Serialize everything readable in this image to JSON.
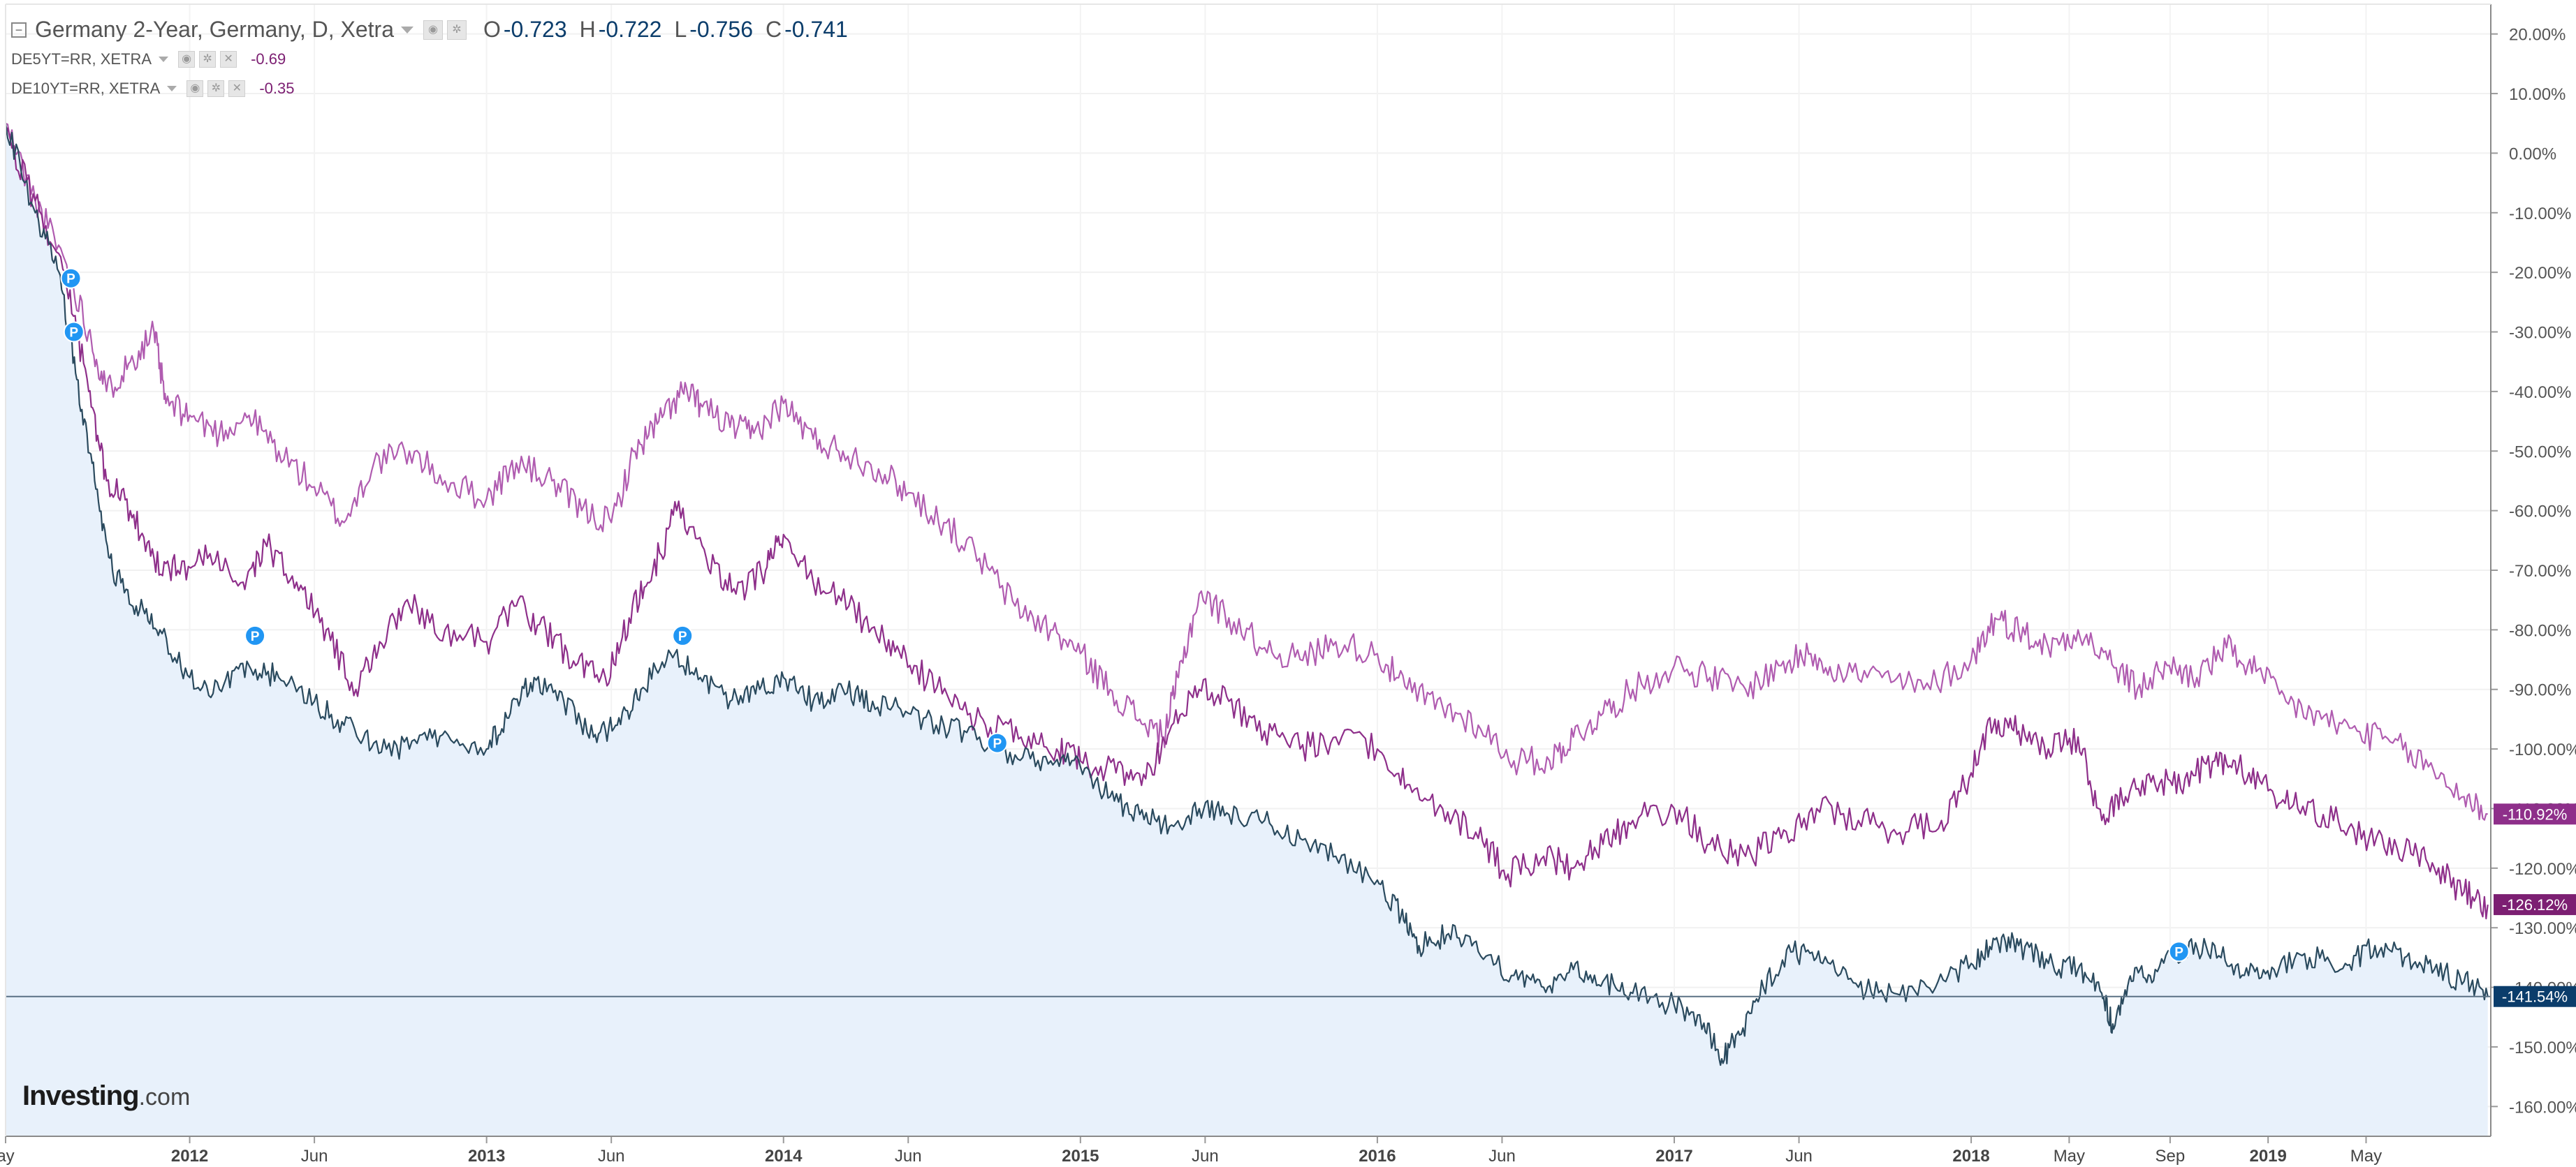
{
  "legend": {
    "main": {
      "label": "Germany 2-Year, Germany, D, Xetra",
      "ohlc": [
        {
          "k": "O",
          "v": "-0.723"
        },
        {
          "k": "H",
          "v": "-0.722"
        },
        {
          "k": "L",
          "v": "-0.756"
        },
        {
          "k": "C",
          "v": "-0.741"
        }
      ]
    },
    "secondary": [
      {
        "label": "DE5YT=RR, XETRA",
        "value": "-0.69"
      },
      {
        "label": "DE10YT=RR, XETRA",
        "value": "-0.35"
      }
    ]
  },
  "logo": {
    "main": "Investing",
    "suffix": ".com"
  },
  "icons": [
    "collapse-icon",
    "dropdown-caret-icon",
    "eye-icon",
    "settings-icon",
    "close-icon",
    "pine-marker-icon"
  ],
  "colors": {
    "de2y": "#2a4a5e",
    "de2y_fill": "#e8f1fb",
    "de5y": "#8e2f8a",
    "de10y": "#b05cb0",
    "de2y_tag": "#0b3d6b",
    "de5y_tag": "#7c1f72",
    "de10y_tag": "#8e2f8a",
    "marker": "#2196f3"
  },
  "chart_data": {
    "type": "line",
    "y_unit": "%",
    "ylim": [
      -165,
      25
    ],
    "y_ticks": [
      "20.00%",
      "10.00%",
      "0.00%",
      "-10.00%",
      "-20.00%",
      "-30.00%",
      "-40.00%",
      "-50.00%",
      "-60.00%",
      "-70.00%",
      "-80.00%",
      "-90.00%",
      "-100.00%",
      "-110.00%",
      "-120.00%",
      "-130.00%",
      "-140.00%",
      "-150.00%",
      "-160.00%"
    ],
    "x_ticks": [
      {
        "label": "ay",
        "t": 2011.38
      },
      {
        "label": "2012",
        "t": 2012.0
      },
      {
        "label": "Jun",
        "t": 2012.42
      },
      {
        "label": "2013",
        "t": 2013.0
      },
      {
        "label": "Jun",
        "t": 2013.42
      },
      {
        "label": "2014",
        "t": 2014.0
      },
      {
        "label": "Jun",
        "t": 2014.42
      },
      {
        "label": "2015",
        "t": 2015.0
      },
      {
        "label": "Jun",
        "t": 2015.42
      },
      {
        "label": "2016",
        "t": 2016.0
      },
      {
        "label": "Jun",
        "t": 2016.42
      },
      {
        "label": "2017",
        "t": 2017.0
      },
      {
        "label": "Jun",
        "t": 2017.42
      },
      {
        "label": "2018",
        "t": 2018.0
      },
      {
        "label": "May",
        "t": 2018.33
      },
      {
        "label": "Sep",
        "t": 2018.67
      },
      {
        "label": "2019",
        "t": 2019.0
      },
      {
        "label": "May",
        "t": 2019.33
      }
    ],
    "xlim": [
      2011.38,
      2019.75
    ],
    "series": [
      {
        "name": "DE10YT=RR, XETRA",
        "last_label": "-110.92%",
        "points": [
          [
            2011.38,
            5
          ],
          [
            2011.48,
            -8
          ],
          [
            2011.58,
            -18
          ],
          [
            2011.66,
            -30
          ],
          [
            2011.72,
            -40
          ],
          [
            2011.8,
            -35
          ],
          [
            2011.88,
            -30
          ],
          [
            2011.92,
            -42
          ],
          [
            2012.0,
            -44
          ],
          [
            2012.1,
            -47
          ],
          [
            2012.2,
            -44
          ],
          [
            2012.3,
            -50
          ],
          [
            2012.42,
            -56
          ],
          [
            2012.52,
            -62
          ],
          [
            2012.62,
            -52
          ],
          [
            2012.74,
            -50
          ],
          [
            2012.86,
            -55
          ],
          [
            2013.0,
            -58
          ],
          [
            2013.1,
            -52
          ],
          [
            2013.22,
            -55
          ],
          [
            2013.32,
            -60
          ],
          [
            2013.42,
            -62
          ],
          [
            2013.5,
            -50
          ],
          [
            2013.58,
            -45
          ],
          [
            2013.66,
            -40
          ],
          [
            2013.72,
            -42
          ],
          [
            2013.82,
            -46
          ],
          [
            2013.9,
            -47
          ],
          [
            2014.0,
            -42
          ],
          [
            2014.1,
            -48
          ],
          [
            2014.2,
            -50
          ],
          [
            2014.32,
            -53
          ],
          [
            2014.42,
            -57
          ],
          [
            2014.54,
            -62
          ],
          [
            2014.66,
            -68
          ],
          [
            2014.78,
            -76
          ],
          [
            2014.9,
            -80
          ],
          [
            2015.0,
            -84
          ],
          [
            2015.1,
            -90
          ],
          [
            2015.2,
            -95
          ],
          [
            2015.28,
            -98
          ],
          [
            2015.33,
            -88
          ],
          [
            2015.4,
            -74
          ],
          [
            2015.5,
            -78
          ],
          [
            2015.62,
            -83
          ],
          [
            2015.74,
            -85
          ],
          [
            2015.86,
            -82
          ],
          [
            2016.0,
            -84
          ],
          [
            2016.1,
            -90
          ],
          [
            2016.22,
            -93
          ],
          [
            2016.34,
            -96
          ],
          [
            2016.46,
            -102
          ],
          [
            2016.58,
            -102
          ],
          [
            2016.66,
            -98
          ],
          [
            2016.76,
            -94
          ],
          [
            2016.86,
            -90
          ],
          [
            2017.0,
            -86
          ],
          [
            2017.12,
            -88
          ],
          [
            2017.24,
            -90
          ],
          [
            2017.36,
            -86
          ],
          [
            2017.46,
            -84
          ],
          [
            2017.56,
            -87
          ],
          [
            2017.7,
            -88
          ],
          [
            2017.84,
            -90
          ],
          [
            2018.0,
            -85
          ],
          [
            2018.08,
            -78
          ],
          [
            2018.16,
            -80
          ],
          [
            2018.26,
            -83
          ],
          [
            2018.36,
            -80
          ],
          [
            2018.46,
            -85
          ],
          [
            2018.56,
            -90
          ],
          [
            2018.66,
            -86
          ],
          [
            2018.76,
            -88
          ],
          [
            2018.86,
            -83
          ],
          [
            2018.96,
            -87
          ],
          [
            2019.06,
            -92
          ],
          [
            2019.18,
            -95
          ],
          [
            2019.3,
            -97
          ],
          [
            2019.42,
            -99
          ],
          [
            2019.54,
            -103
          ],
          [
            2019.66,
            -108
          ],
          [
            2019.74,
            -110.92
          ]
        ]
      },
      {
        "name": "DE5YT=RR, XETRA",
        "last_label": "-126.12%",
        "points": [
          [
            2011.38,
            3
          ],
          [
            2011.48,
            -8
          ],
          [
            2011.58,
            -20
          ],
          [
            2011.66,
            -40
          ],
          [
            2011.72,
            -55
          ],
          [
            2011.8,
            -60
          ],
          [
            2011.88,
            -68
          ],
          [
            2011.96,
            -70
          ],
          [
            2012.06,
            -68
          ],
          [
            2012.18,
            -72
          ],
          [
            2012.26,
            -66
          ],
          [
            2012.36,
            -72
          ],
          [
            2012.46,
            -80
          ],
          [
            2012.56,
            -90
          ],
          [
            2012.64,
            -82
          ],
          [
            2012.74,
            -76
          ],
          [
            2012.86,
            -80
          ],
          [
            2013.0,
            -82
          ],
          [
            2013.1,
            -76
          ],
          [
            2013.2,
            -80
          ],
          [
            2013.3,
            -86
          ],
          [
            2013.4,
            -88
          ],
          [
            2013.48,
            -78
          ],
          [
            2013.56,
            -70
          ],
          [
            2013.64,
            -60
          ],
          [
            2013.74,
            -68
          ],
          [
            2013.84,
            -74
          ],
          [
            2013.94,
            -70
          ],
          [
            2014.0,
            -64
          ],
          [
            2014.1,
            -72
          ],
          [
            2014.22,
            -76
          ],
          [
            2014.34,
            -82
          ],
          [
            2014.44,
            -86
          ],
          [
            2014.56,
            -92
          ],
          [
            2014.68,
            -96
          ],
          [
            2014.8,
            -98
          ],
          [
            2014.92,
            -100
          ],
          [
            2015.0,
            -102
          ],
          [
            2015.12,
            -104
          ],
          [
            2015.22,
            -105
          ],
          [
            2015.3,
            -97
          ],
          [
            2015.4,
            -90
          ],
          [
            2015.5,
            -92
          ],
          [
            2015.62,
            -97
          ],
          [
            2015.74,
            -100
          ],
          [
            2015.86,
            -98
          ],
          [
            2016.0,
            -100
          ],
          [
            2016.1,
            -106
          ],
          [
            2016.22,
            -110
          ],
          [
            2016.34,
            -115
          ],
          [
            2016.44,
            -121
          ],
          [
            2016.56,
            -118
          ],
          [
            2016.66,
            -120
          ],
          [
            2016.76,
            -116
          ],
          [
            2016.86,
            -112
          ],
          [
            2017.0,
            -110
          ],
          [
            2017.12,
            -116
          ],
          [
            2017.24,
            -118
          ],
          [
            2017.36,
            -115
          ],
          [
            2017.48,
            -110
          ],
          [
            2017.62,
            -112
          ],
          [
            2017.76,
            -114
          ],
          [
            2017.9,
            -112
          ],
          [
            2018.0,
            -104
          ],
          [
            2018.08,
            -95
          ],
          [
            2018.16,
            -97
          ],
          [
            2018.26,
            -100
          ],
          [
            2018.36,
            -98
          ],
          [
            2018.44,
            -112
          ],
          [
            2018.52,
            -108
          ],
          [
            2018.62,
            -106
          ],
          [
            2018.72,
            -105
          ],
          [
            2018.82,
            -102
          ],
          [
            2018.9,
            -103
          ],
          [
            2019.0,
            -107
          ],
          [
            2019.1,
            -110
          ],
          [
            2019.22,
            -112
          ],
          [
            2019.34,
            -115
          ],
          [
            2019.46,
            -117
          ],
          [
            2019.56,
            -120
          ],
          [
            2019.66,
            -124
          ],
          [
            2019.74,
            -126.12
          ]
        ]
      },
      {
        "name": "Germany 2-Year",
        "last_label": "-141.54%",
        "points": [
          [
            2011.38,
            5
          ],
          [
            2011.48,
            -10
          ],
          [
            2011.56,
            -20
          ],
          [
            2011.62,
            -38
          ],
          [
            2011.68,
            -55
          ],
          [
            2011.74,
            -70
          ],
          [
            2011.82,
            -76
          ],
          [
            2011.9,
            -80
          ],
          [
            2012.0,
            -88
          ],
          [
            2012.1,
            -90
          ],
          [
            2012.2,
            -86
          ],
          [
            2012.3,
            -88
          ],
          [
            2012.42,
            -92
          ],
          [
            2012.52,
            -96
          ],
          [
            2012.62,
            -99
          ],
          [
            2012.74,
            -100
          ],
          [
            2012.86,
            -97
          ],
          [
            2013.0,
            -100
          ],
          [
            2013.08,
            -94
          ],
          [
            2013.16,
            -88
          ],
          [
            2013.26,
            -92
          ],
          [
            2013.36,
            -98
          ],
          [
            2013.44,
            -96
          ],
          [
            2013.52,
            -90
          ],
          [
            2013.62,
            -84
          ],
          [
            2013.72,
            -88
          ],
          [
            2013.82,
            -92
          ],
          [
            2013.92,
            -90
          ],
          [
            2014.0,
            -88
          ],
          [
            2014.1,
            -92
          ],
          [
            2014.2,
            -90
          ],
          [
            2014.3,
            -92
          ],
          [
            2014.42,
            -94
          ],
          [
            2014.54,
            -96
          ],
          [
            2014.66,
            -98
          ],
          [
            2014.78,
            -101
          ],
          [
            2014.9,
            -102
          ],
          [
            2015.0,
            -103
          ],
          [
            2015.1,
            -108
          ],
          [
            2015.2,
            -111
          ],
          [
            2015.3,
            -113
          ],
          [
            2015.4,
            -110
          ],
          [
            2015.5,
            -111
          ],
          [
            2015.62,
            -112
          ],
          [
            2015.74,
            -115
          ],
          [
            2015.86,
            -118
          ],
          [
            2016.0,
            -122
          ],
          [
            2016.08,
            -128
          ],
          [
            2016.14,
            -133
          ],
          [
            2016.24,
            -131
          ],
          [
            2016.34,
            -134
          ],
          [
            2016.46,
            -138
          ],
          [
            2016.56,
            -140
          ],
          [
            2016.66,
            -137
          ],
          [
            2016.76,
            -139
          ],
          [
            2016.86,
            -141
          ],
          [
            2017.0,
            -143
          ],
          [
            2017.1,
            -146
          ],
          [
            2017.16,
            -152
          ],
          [
            2017.22,
            -148
          ],
          [
            2017.3,
            -140
          ],
          [
            2017.4,
            -134
          ],
          [
            2017.5,
            -136
          ],
          [
            2017.62,
            -140
          ],
          [
            2017.74,
            -141
          ],
          [
            2017.88,
            -140
          ],
          [
            2018.0,
            -136
          ],
          [
            2018.08,
            -132
          ],
          [
            2018.16,
            -133
          ],
          [
            2018.26,
            -136
          ],
          [
            2018.36,
            -137
          ],
          [
            2018.44,
            -141
          ],
          [
            2018.48,
            -147
          ],
          [
            2018.54,
            -139
          ],
          [
            2018.62,
            -137
          ],
          [
            2018.72,
            -134
          ],
          [
            2018.82,
            -133
          ],
          [
            2018.92,
            -138
          ],
          [
            2019.02,
            -137
          ],
          [
            2019.14,
            -135
          ],
          [
            2019.26,
            -136
          ],
          [
            2019.36,
            -133
          ],
          [
            2019.46,
            -135
          ],
          [
            2019.56,
            -137
          ],
          [
            2019.66,
            -139
          ],
          [
            2019.74,
            -141.54
          ]
        ]
      }
    ],
    "horizontal_line": -141.54,
    "markers": [
      {
        "label": "P",
        "t": 2011.6,
        "y": -21
      },
      {
        "label": "P",
        "t": 2011.61,
        "y": -30
      },
      {
        "label": "P",
        "t": 2012.22,
        "y": -81
      },
      {
        "label": "P",
        "t": 2013.66,
        "y": -81
      },
      {
        "label": "P",
        "t": 2014.72,
        "y": -99
      },
      {
        "label": "P",
        "t": 2018.7,
        "y": -134
      }
    ],
    "grid": true,
    "legend_position": "top-left"
  }
}
